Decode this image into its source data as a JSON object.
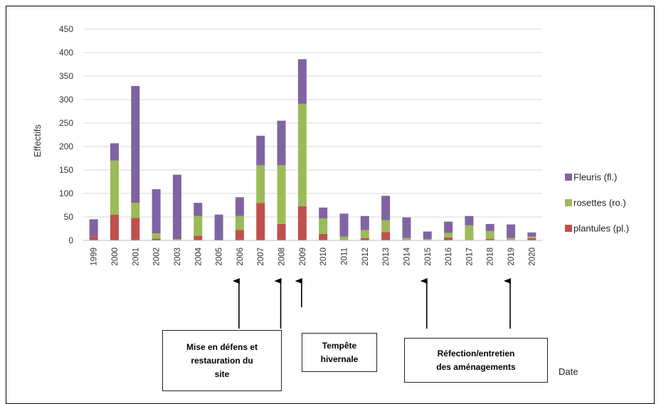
{
  "chart_data": {
    "type": "bar",
    "stacked": true,
    "categories": [
      "1999",
      "2000",
      "2001",
      "2002",
      "2003",
      "2004",
      "2005",
      "2006",
      "2007",
      "2008",
      "2009",
      "2010",
      "2011",
      "2012",
      "2013",
      "2014",
      "2015",
      "2016",
      "2017",
      "2018",
      "2019",
      "2020"
    ],
    "series": [
      {
        "name": "plantules (pl.)",
        "color": "#c0504d",
        "values": [
          8,
          55,
          48,
          4,
          0,
          10,
          0,
          22,
          80,
          35,
          73,
          14,
          0,
          5,
          18,
          0,
          0,
          6,
          0,
          3,
          0,
          5
        ]
      },
      {
        "name": "rosettes (ro.)",
        "color": "#9bbb59",
        "values": [
          0,
          115,
          32,
          11,
          3,
          42,
          0,
          30,
          80,
          125,
          218,
          33,
          8,
          17,
          25,
          5,
          3,
          10,
          32,
          17,
          5,
          3
        ]
      },
      {
        "name": "Fleuris (fl.)",
        "color": "#8064a2",
        "values": [
          37,
          37,
          249,
          94,
          137,
          28,
          55,
          40,
          63,
          95,
          95,
          23,
          49,
          30,
          52,
          44,
          16,
          24,
          20,
          15,
          29,
          9
        ]
      }
    ],
    "ylabel": "Effectifs",
    "xlabel": "Date",
    "ylim": [
      0,
      450
    ],
    "yticks": [
      0,
      50,
      100,
      150,
      200,
      250,
      300,
      350,
      400,
      450
    ],
    "grid": true,
    "legend_position": "right",
    "annotations": [
      {
        "text": "Mise en défens et\nrestauration du\nsite",
        "at": "2006"
      },
      {
        "text": "",
        "at": "2008"
      },
      {
        "text": "Tempête\nhivernale",
        "at": "2009"
      },
      {
        "text": "Réfection/entretien\ndes aménagements",
        "at": "2015"
      },
      {
        "text": "",
        "at": "2019"
      }
    ]
  }
}
